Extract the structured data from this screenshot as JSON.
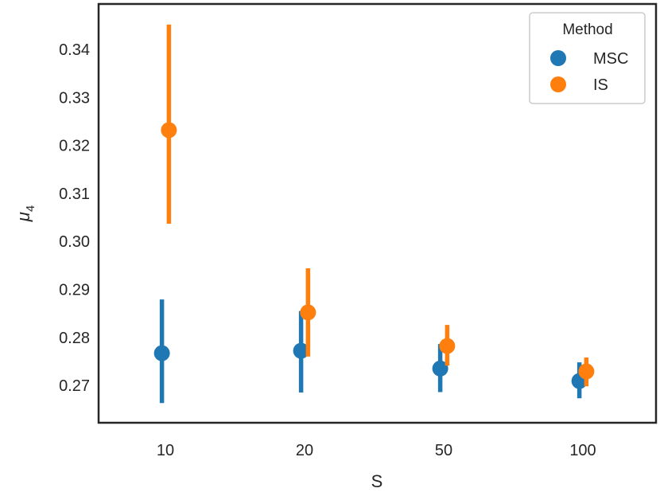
{
  "chart_data": {
    "type": "point",
    "categories": [
      "10",
      "20",
      "50",
      "100"
    ],
    "xlabel": "S",
    "ylabel": "μ",
    "ylabel_subscript": "4",
    "ylim": [
      0.2622,
      0.3495
    ],
    "yticks": [
      "0.27",
      "0.28",
      "0.29",
      "0.30",
      "0.31",
      "0.32",
      "0.33",
      "0.34"
    ],
    "legend": {
      "title": "Method",
      "position": "top-right"
    },
    "grid": false,
    "series": [
      {
        "name": "MSC",
        "color": "#1f77b4",
        "values": [
          0.2767,
          0.2772,
          0.2735,
          0.2709
        ],
        "ci_low": [
          0.2663,
          0.2685,
          0.2686,
          0.2673
        ],
        "ci_high": [
          0.2879,
          0.2855,
          0.2786,
          0.2748
        ]
      },
      {
        "name": "IS",
        "color": "#ff7f0e",
        "values": [
          0.3232,
          0.2852,
          0.2782,
          0.2729
        ],
        "ci_low": [
          0.3037,
          0.276,
          0.2741,
          0.2698
        ],
        "ci_high": [
          0.3452,
          0.2944,
          0.2826,
          0.2758
        ]
      }
    ]
  }
}
